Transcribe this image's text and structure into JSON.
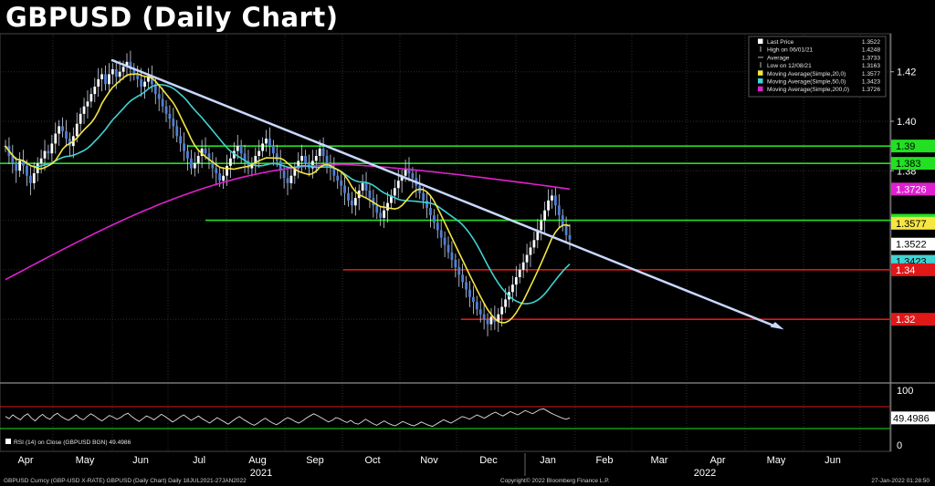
{
  "title": "GBPUSD (Daily Chart)",
  "footer": {
    "left": "GBPUSD Curncy (GBP-USD X-RATE) GBPUSD (Daily Chart)  Daily 18JUL2021-27JAN2022",
    "center": "Copyright© 2022 Bloomberg Finance L.P.",
    "right": "27-Jan-2022 01:28:50"
  },
  "colors": {
    "background": "#000000",
    "candles": "#4f7fd6",
    "ma20": "#f5e642",
    "ma50": "#3fd3d3",
    "ma200": "#e020d0",
    "trendline": "#c8d8ff",
    "support_green": "#22e022",
    "support_red": "#e01818",
    "rsi": "#e0e0e0"
  },
  "legend": [
    {
      "label": "Last Price",
      "value": "1.3522",
      "marker": "square-white"
    },
    {
      "label": "High on 06/01/21",
      "value": "1.4248",
      "marker": "tick"
    },
    {
      "label": "Average",
      "value": "1.3733",
      "marker": "dash"
    },
    {
      "label": "Low on 12/08/21",
      "value": "1.3163",
      "marker": "tick"
    },
    {
      "label": "Moving Average(Simple,20,0)",
      "value": "1.3577",
      "marker": "square-yellow"
    },
    {
      "label": "Moving Average(Simple,50,0)",
      "value": "1.3423",
      "marker": "square-cyan"
    },
    {
      "label": "Moving Average(Simple,200,0)",
      "value": "1.3726",
      "marker": "square-magenta"
    }
  ],
  "price_tags": [
    {
      "text": "1.39",
      "value": 1.39,
      "bg": "#22e022",
      "fg": "#000000"
    },
    {
      "text": "1.383",
      "value": 1.383,
      "bg": "#22e022",
      "fg": "#000000"
    },
    {
      "text": "1.3726",
      "value": 1.3726,
      "bg": "#e020d0",
      "fg": "#ffffff"
    },
    {
      "text": "1.36",
      "value": 1.36,
      "bg": "#22e022",
      "fg": "#000000"
    },
    {
      "text": "1.3577",
      "value": 1.3577,
      "bg": "#f5e642",
      "fg": "#000000"
    },
    {
      "text": "1.3522",
      "value": 1.3522,
      "bg": "#ffffff",
      "fg": "#000000"
    },
    {
      "text": "1.3423",
      "value": 1.3423,
      "bg": "#3fd3d3",
      "fg": "#000000"
    },
    {
      "text": "1.34",
      "value": 1.34,
      "bg": "#e01818",
      "fg": "#ffffff"
    },
    {
      "text": "1.32",
      "value": 1.32,
      "bg": "#e01818",
      "fg": "#ffffff"
    }
  ],
  "rsi": {
    "label": "RSI (14)  on Close (GBPUSD BGN) 49.4986",
    "last_value": "49.4986",
    "yticks": [
      0,
      50,
      100
    ],
    "levels": {
      "overbought": 70,
      "oversold": 30
    },
    "values": [
      52,
      48,
      55,
      50,
      46,
      53,
      57,
      49,
      44,
      51,
      56,
      50,
      47,
      54,
      58,
      52,
      48,
      45,
      50,
      55,
      49,
      46,
      52,
      57,
      53,
      48,
      44,
      49,
      54,
      51,
      47,
      50,
      55,
      58,
      52,
      47,
      43,
      48,
      53,
      50,
      46,
      51,
      56,
      52,
      47,
      42,
      46,
      51,
      55,
      50,
      45,
      49,
      53,
      48,
      44,
      40,
      45,
      50,
      46,
      42,
      38,
      43,
      48,
      52,
      47,
      43,
      39,
      36,
      40,
      45,
      49,
      44,
      40,
      37,
      41,
      46,
      50,
      47,
      43,
      40,
      44,
      49,
      53,
      57,
      54,
      50,
      46,
      42,
      45,
      50,
      48,
      44,
      41,
      45,
      40,
      38,
      42,
      47,
      43,
      39,
      36,
      40,
      44,
      40,
      37,
      35,
      39,
      43,
      40,
      37,
      35,
      38,
      42,
      39,
      36,
      34,
      38,
      42,
      46,
      43,
      40,
      44,
      48,
      52,
      50,
      47,
      51,
      55,
      52,
      49,
      53,
      57,
      60,
      56,
      53,
      57,
      61,
      58,
      55,
      59,
      63,
      60,
      57,
      61,
      65,
      66,
      62,
      58,
      55,
      52,
      49,
      47,
      49.4986
    ]
  },
  "chart_data": {
    "type": "line",
    "title": "GBPUSD (Daily Chart)",
    "xlabel": "",
    "ylabel": "",
    "x_tick_labels": [
      "Apr",
      "May",
      "Jun",
      "Jul",
      "Aug",
      "Sep",
      "Oct",
      "Nov",
      "Dec",
      "Jan",
      "Feb",
      "Mar",
      "Apr",
      "May",
      "Jun"
    ],
    "year_labels": [
      "2021",
      "2022"
    ],
    "ylim": [
      1.295,
      1.435
    ],
    "yticks": [
      1.32,
      1.34,
      1.36,
      1.38,
      1.4,
      1.42
    ],
    "grid": true,
    "legend_position": "top-right",
    "x_range_days": [
      0,
      452
    ],
    "trend_line": {
      "x": [
        122,
        856
      ],
      "y": [
        1.4248,
        1.3163
      ]
    },
    "horizontal_levels": [
      {
        "label": "1.39",
        "value": 1.39,
        "x_start": 205,
        "color": "green"
      },
      {
        "label": "1.383",
        "value": 1.383,
        "x_start": 0,
        "color": "green"
      },
      {
        "label": "1.36",
        "value": 1.36,
        "x_start": 225,
        "color": "green"
      },
      {
        "label": "1.34",
        "value": 1.34,
        "x_start": 376,
        "color": "red"
      },
      {
        "label": "1.32",
        "value": 1.32,
        "x_start": 505,
        "color": "red"
      }
    ],
    "series": [
      {
        "name": "Last Price",
        "kind": "candles",
        "values": [
          1.39,
          1.386,
          1.383,
          1.38,
          1.384,
          1.382,
          1.378,
          1.375,
          1.379,
          1.383,
          1.385,
          1.388,
          1.387,
          1.391,
          1.395,
          1.398,
          1.396,
          1.393,
          1.39,
          1.394,
          1.399,
          1.403,
          1.406,
          1.408,
          1.411,
          1.414,
          1.417,
          1.419,
          1.415,
          1.419,
          1.421,
          1.418,
          1.42,
          1.422,
          1.424,
          1.421,
          1.419,
          1.417,
          1.414,
          1.416,
          1.418,
          1.415,
          1.411,
          1.409,
          1.406,
          1.403,
          1.401,
          1.398,
          1.394,
          1.391,
          1.388,
          1.385,
          1.381,
          1.383,
          1.386,
          1.389,
          1.387,
          1.384,
          1.381,
          1.379,
          1.376,
          1.378,
          1.382,
          1.385,
          1.388,
          1.39,
          1.387,
          1.384,
          1.381,
          1.383,
          1.386,
          1.388,
          1.391,
          1.393,
          1.39,
          1.387,
          1.384,
          1.38,
          1.377,
          1.375,
          1.378,
          1.381,
          1.384,
          1.386,
          1.383,
          1.381,
          1.384,
          1.386,
          1.389,
          1.386,
          1.383,
          1.381,
          1.378,
          1.376,
          1.374,
          1.371,
          1.368,
          1.366,
          1.369,
          1.372,
          1.375,
          1.372,
          1.369,
          1.366,
          1.363,
          1.361,
          1.364,
          1.367,
          1.37,
          1.373,
          1.376,
          1.378,
          1.381,
          1.379,
          1.377,
          1.374,
          1.371,
          1.368,
          1.365,
          1.362,
          1.359,
          1.356,
          1.353,
          1.35,
          1.347,
          1.344,
          1.341,
          1.338,
          1.335,
          1.332,
          1.329,
          1.327,
          1.324,
          1.322,
          1.32,
          1.318,
          1.321,
          1.319,
          1.322,
          1.325,
          1.328,
          1.331,
          1.334,
          1.337,
          1.34,
          1.343,
          1.346,
          1.349,
          1.352,
          1.356,
          1.36,
          1.364,
          1.368,
          1.37,
          1.366,
          1.362,
          1.358,
          1.354,
          1.3522
        ]
      },
      {
        "name": "Moving Average(Simple,20,0)",
        "last": 1.3577
      },
      {
        "name": "Moving Average(Simple,50,0)",
        "last": 1.3423
      },
      {
        "name": "Moving Average(Simple,200,0)",
        "last": 1.3726
      }
    ]
  }
}
